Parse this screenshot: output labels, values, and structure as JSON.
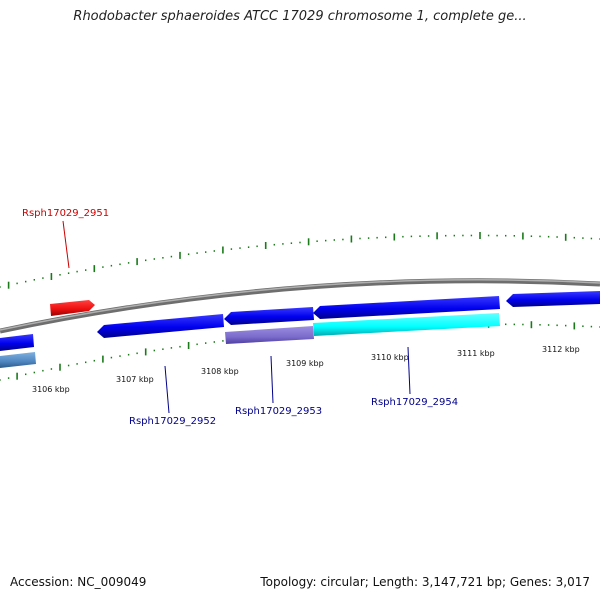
{
  "title": "Rhodobacter sphaeroides ATCC 17029 chromosome 1, complete ge...",
  "footer": {
    "accession": "Accession: NC_009049",
    "topology": "Topology: circular; Length: 3,147,721 bp; Genes: 3,017"
  },
  "scale_labels": [
    "3106 kbp",
    "3107 kbp",
    "3108 kbp",
    "3109 kbp",
    "3110 kbp",
    "3111 kbp",
    "3112 kbp"
  ],
  "gene_labels": [
    {
      "text": "Rsph17029_2951",
      "color": "#cc0000"
    },
    {
      "text": "Rsph17029_2952",
      "color": "#00008b"
    },
    {
      "text": "Rsph17029_2953",
      "color": "#00008b"
    },
    {
      "text": "Rsph17029_2954",
      "color": "#00008b"
    }
  ],
  "colors": {
    "backbone": "#8c8c8c",
    "gene_blue": "#0000ee",
    "gene_red": "#ee1111",
    "gene_cyan": "#00ffff",
    "gene_purple": "#7b6bcc",
    "gene_steel": "#4f86c0",
    "tick_green": "#1a7a1a"
  }
}
